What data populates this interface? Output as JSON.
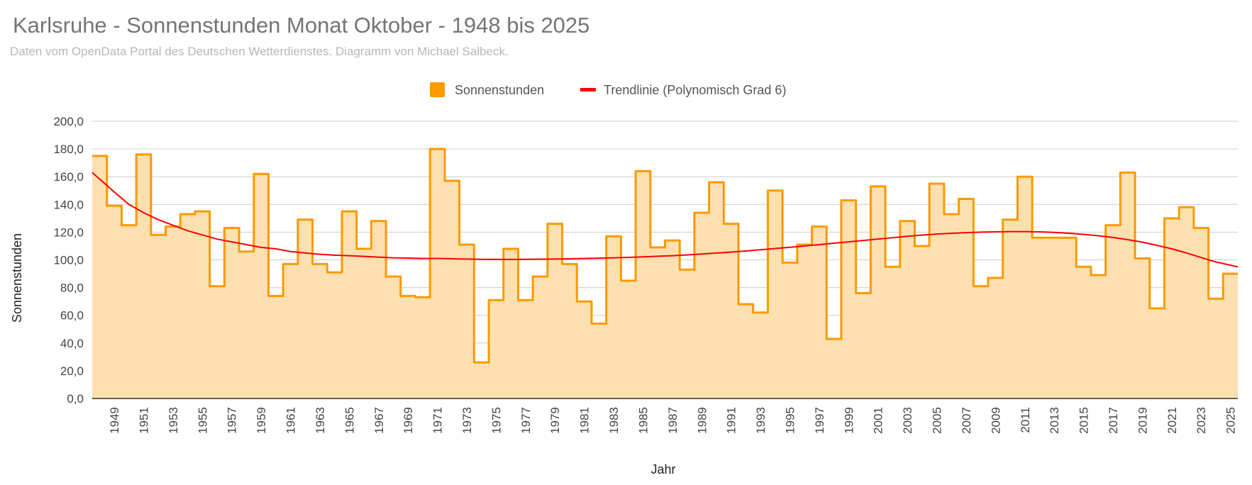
{
  "chart_data": {
    "type": "area",
    "title": "Karlsruhe - Sonnenstunden Monat Oktober - 1948 bis 2025",
    "subtitle": "Daten vom OpenData Portal des Deutschen Wetterdienstes. Diagramm von Michael Salbeck.",
    "xlabel": "Jahr",
    "ylabel": "Sonnenstunden",
    "ylim": [
      0,
      200
    ],
    "yticks": [
      "0,0",
      "20,0",
      "40,0",
      "60,0",
      "80,0",
      "100,0",
      "120,0",
      "140,0",
      "160,0",
      "180,0",
      "200,0"
    ],
    "grid": true,
    "legend_position": "top",
    "x": [
      1948,
      1949,
      1950,
      1951,
      1952,
      1953,
      1954,
      1955,
      1956,
      1957,
      1958,
      1959,
      1960,
      1961,
      1962,
      1963,
      1964,
      1965,
      1966,
      1967,
      1968,
      1969,
      1970,
      1971,
      1972,
      1973,
      1974,
      1975,
      1976,
      1977,
      1978,
      1979,
      1980,
      1981,
      1982,
      1983,
      1984,
      1985,
      1986,
      1987,
      1988,
      1989,
      1990,
      1991,
      1992,
      1993,
      1994,
      1995,
      1996,
      1997,
      1998,
      1999,
      2000,
      2001,
      2002,
      2003,
      2004,
      2005,
      2006,
      2007,
      2008,
      2009,
      2010,
      2011,
      2012,
      2013,
      2014,
      2015,
      2016,
      2017,
      2018,
      2019,
      2020,
      2021,
      2022,
      2023,
      2024,
      2025
    ],
    "xtick_labels": [
      "1949",
      "1951",
      "1953",
      "1955",
      "1957",
      "1959",
      "1961",
      "1963",
      "1965",
      "1967",
      "1969",
      "1971",
      "1973",
      "1975",
      "1977",
      "1979",
      "1981",
      "1983",
      "1985",
      "1987",
      "1989",
      "1991",
      "1993",
      "1995",
      "1997",
      "1999",
      "2001",
      "2003",
      "2005",
      "2007",
      "2009",
      "2011",
      "2013",
      "2015",
      "2017",
      "2019",
      "2021",
      "2023",
      "2025"
    ],
    "series": [
      {
        "name": "Sonnenstunden",
        "color": "#ff9900",
        "fill": "#fde0b0",
        "values": [
          175,
          139,
          125,
          176,
          118,
          124,
          133,
          135,
          81,
          123,
          106,
          162,
          74,
          97,
          129,
          97,
          91,
          135,
          108,
          128,
          88,
          74,
          73,
          180,
          157,
          111,
          26,
          71,
          108,
          71,
          88,
          126,
          97,
          70,
          54,
          117,
          85,
          164,
          109,
          114,
          93,
          134,
          156,
          126,
          68,
          62,
          150,
          98,
          111,
          124,
          43,
          143,
          76,
          153,
          95,
          128,
          110,
          155,
          133,
          144,
          81,
          87,
          129,
          160,
          116,
          116,
          116,
          95,
          89,
          125,
          163,
          101,
          65,
          130,
          138,
          123,
          72,
          90
        ]
      },
      {
        "name": "Trendlinie (Polynomisch Grad 6)",
        "color": "#ff0000",
        "values": [
          163,
          149,
          140,
          134,
          129,
          125,
          121,
          118,
          115,
          113,
          111,
          109,
          108,
          106,
          105,
          104,
          103.4,
          103,
          102.5,
          102,
          101.5,
          101.3,
          101,
          101,
          100.8,
          100.6,
          100.4,
          100.3,
          100.3,
          100.4,
          100.5,
          100.6,
          100.8,
          101,
          101.2,
          101.5,
          101.8,
          102.2,
          102.6,
          103,
          103.6,
          104.2,
          104.9,
          105.6,
          106.4,
          107.3,
          108.2,
          109.1,
          110,
          111,
          112,
          113,
          114,
          115,
          116,
          117,
          117.9,
          118.6,
          119.2,
          119.6,
          120,
          120.2,
          120.4,
          120.4,
          120.2,
          119.8,
          119.2,
          118.4,
          117.4,
          116.2,
          114.6,
          112.8,
          110.5,
          108,
          105,
          101.7,
          98.5,
          95
        ]
      }
    ]
  }
}
